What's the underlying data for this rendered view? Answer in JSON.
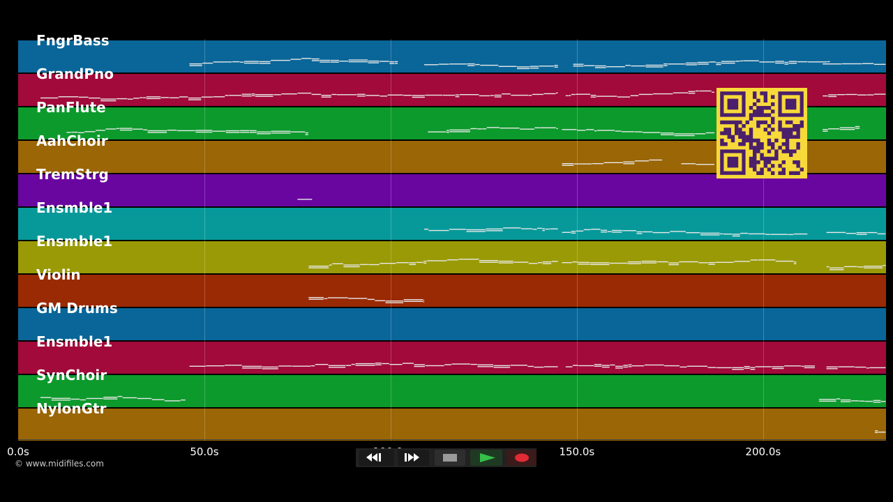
{
  "tracks": [
    {
      "name": "FngrBass",
      "color": "#0a6699"
    },
    {
      "name": "GrandPno",
      "color": "#a10a3a"
    },
    {
      "name": "PanFlute",
      "color": "#0c9a2c"
    },
    {
      "name": "AahChoir",
      "color": "#9a6606"
    },
    {
      "name": "TremStrg",
      "color": "#6a06a0"
    },
    {
      "name": "Ensmble1",
      "color": "#07999a"
    },
    {
      "name": "Ensmble1",
      "color": "#9a9a06"
    },
    {
      "name": "Violin",
      "color": "#9a2a04"
    },
    {
      "name": "GM Drums",
      "color": "#0a6699"
    },
    {
      "name": "Ensmble1",
      "color": "#a10a3a"
    },
    {
      "name": "SynChoir",
      "color": "#0c9a2c"
    },
    {
      "name": "NylonGtr",
      "color": "#9a6606"
    }
  ],
  "timeline": {
    "ticks": [
      "0.0s",
      "50.0s",
      "100.0s",
      "150.0s",
      "200.0s"
    ],
    "tick_seconds": [
      0,
      50,
      100,
      150,
      200
    ],
    "total_seconds": 233
  },
  "note_segments": [
    {
      "track": 0,
      "segments": [
        [
          46,
          102
        ],
        [
          109,
          145
        ],
        [
          149,
          218
        ],
        [
          216,
          233
        ]
      ]
    },
    {
      "track": 1,
      "segments": [
        [
          6,
          145
        ],
        [
          147,
          187
        ],
        [
          216,
          233
        ]
      ]
    },
    {
      "track": 2,
      "segments": [
        [
          13,
          78
        ],
        [
          110,
          145
        ],
        [
          146,
          187
        ],
        [
          216,
          226
        ]
      ]
    },
    {
      "track": 3,
      "segments": [
        [
          146,
          173
        ],
        [
          178,
          187
        ]
      ]
    },
    {
      "track": 4,
      "segments": [
        [
          75,
          79
        ]
      ]
    },
    {
      "track": 5,
      "segments": [
        [
          109,
          145
        ],
        [
          146,
          212
        ],
        [
          217,
          233
        ]
      ]
    },
    {
      "track": 6,
      "segments": [
        [
          78,
          145
        ],
        [
          146,
          209
        ],
        [
          217,
          233
        ]
      ]
    },
    {
      "track": 7,
      "segments": [
        [
          78,
          109
        ]
      ]
    },
    {
      "track": 9,
      "segments": [
        [
          46,
          145
        ],
        [
          147,
          214
        ],
        [
          217,
          233
        ]
      ]
    },
    {
      "track": 10,
      "segments": [
        [
          6,
          45
        ],
        [
          215,
          233
        ]
      ]
    },
    {
      "track": 11,
      "segments": [
        [
          230,
          233
        ]
      ]
    }
  ],
  "copyright": "© www.midifiles.com",
  "transport": {
    "rewind_icon": "rewind-icon",
    "forward_icon": "fast-forward-icon",
    "stop_icon": "stop-icon",
    "play_icon": "play-icon",
    "record_icon": "record-icon"
  },
  "colors": {
    "background": "#000000",
    "note": "#e8e8e8",
    "play_accent": "#35c049",
    "record_accent": "#e02b35",
    "qr_background": "#f7d93a",
    "qr_foreground": "#4a1f6b"
  }
}
